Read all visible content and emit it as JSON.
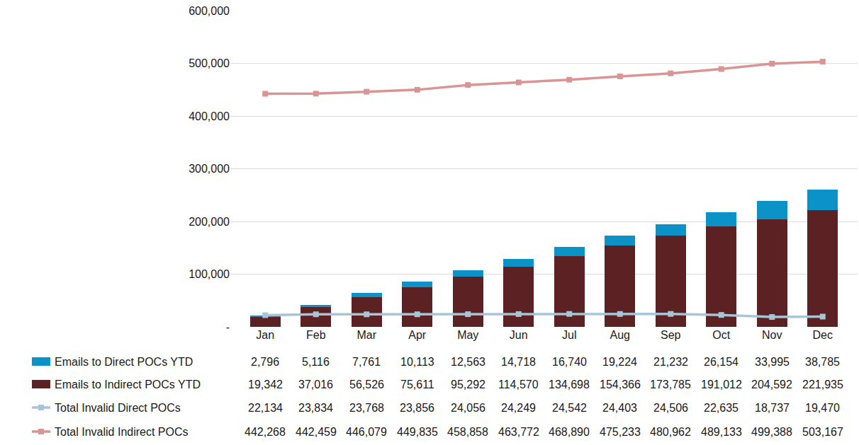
{
  "chart_data": {
    "type": "bar",
    "stacked": true,
    "grid": true,
    "data_labels": true,
    "categories": [
      "Jan",
      "Feb",
      "Mar",
      "Apr",
      "May",
      "Jun",
      "Jul",
      "Aug",
      "Sep",
      "Oct",
      "Nov",
      "Dec"
    ],
    "ylim": [
      0,
      600000
    ],
    "yticks": [
      {
        "value": 0,
        "label": "-"
      },
      {
        "value": 100000,
        "label": "100,000"
      },
      {
        "value": 200000,
        "label": "200,000"
      },
      {
        "value": 300000,
        "label": "300,000"
      },
      {
        "value": 400000,
        "label": "400,000"
      },
      {
        "value": 500000,
        "label": "500,000"
      },
      {
        "value": 600000,
        "label": "600,000"
      }
    ],
    "series": [
      {
        "name": "Emails to Direct POCs YTD",
        "type": "bar",
        "color": "#0b92c6",
        "values": [
          2796,
          5116,
          7761,
          10113,
          12563,
          14718,
          16740,
          19224,
          21232,
          26154,
          33995,
          38785
        ],
        "value_labels": [
          "2,796",
          "5,116",
          "7,761",
          "10,113",
          "12,563",
          "14,718",
          "16,740",
          "19,224",
          "21,232",
          "26,154",
          "33,995",
          "38,785"
        ]
      },
      {
        "name": "Emails to Indirect POCs YTD",
        "type": "bar",
        "color": "#5c2223",
        "values": [
          19342,
          37016,
          56526,
          75611,
          95292,
          114570,
          134698,
          154366,
          173785,
          191012,
          204592,
          221935
        ],
        "value_labels": [
          "19,342",
          "37,016",
          "56,526",
          "75,611",
          "95,292",
          "114,570",
          "134,698",
          "154,366",
          "173,785",
          "191,012",
          "204,592",
          "221,935"
        ]
      },
      {
        "name": "Total Invalid Direct POCs",
        "type": "line",
        "color": "#a7c5d5",
        "marker": "square",
        "values": [
          22134,
          23834,
          23768,
          23856,
          24056,
          24249,
          24542,
          24403,
          24506,
          22635,
          18737,
          19470
        ],
        "value_labels": [
          "22,134",
          "23,834",
          "23,768",
          "23,856",
          "24,056",
          "24,249",
          "24,542",
          "24,403",
          "24,506",
          "22,635",
          "18,737",
          "19,470"
        ]
      },
      {
        "name": "Total Invalid Indirect POCs",
        "type": "line",
        "color": "#d99594",
        "marker": "square",
        "values": [
          442268,
          442459,
          446079,
          449835,
          458858,
          463772,
          468890,
          475233,
          480962,
          489133,
          499388,
          503167
        ],
        "value_labels": [
          "442,268",
          "442,459",
          "446,079",
          "449,835",
          "458,858",
          "463,772",
          "468,890",
          "475,233",
          "480,962",
          "489,133",
          "499,388",
          "503,167"
        ]
      }
    ]
  }
}
